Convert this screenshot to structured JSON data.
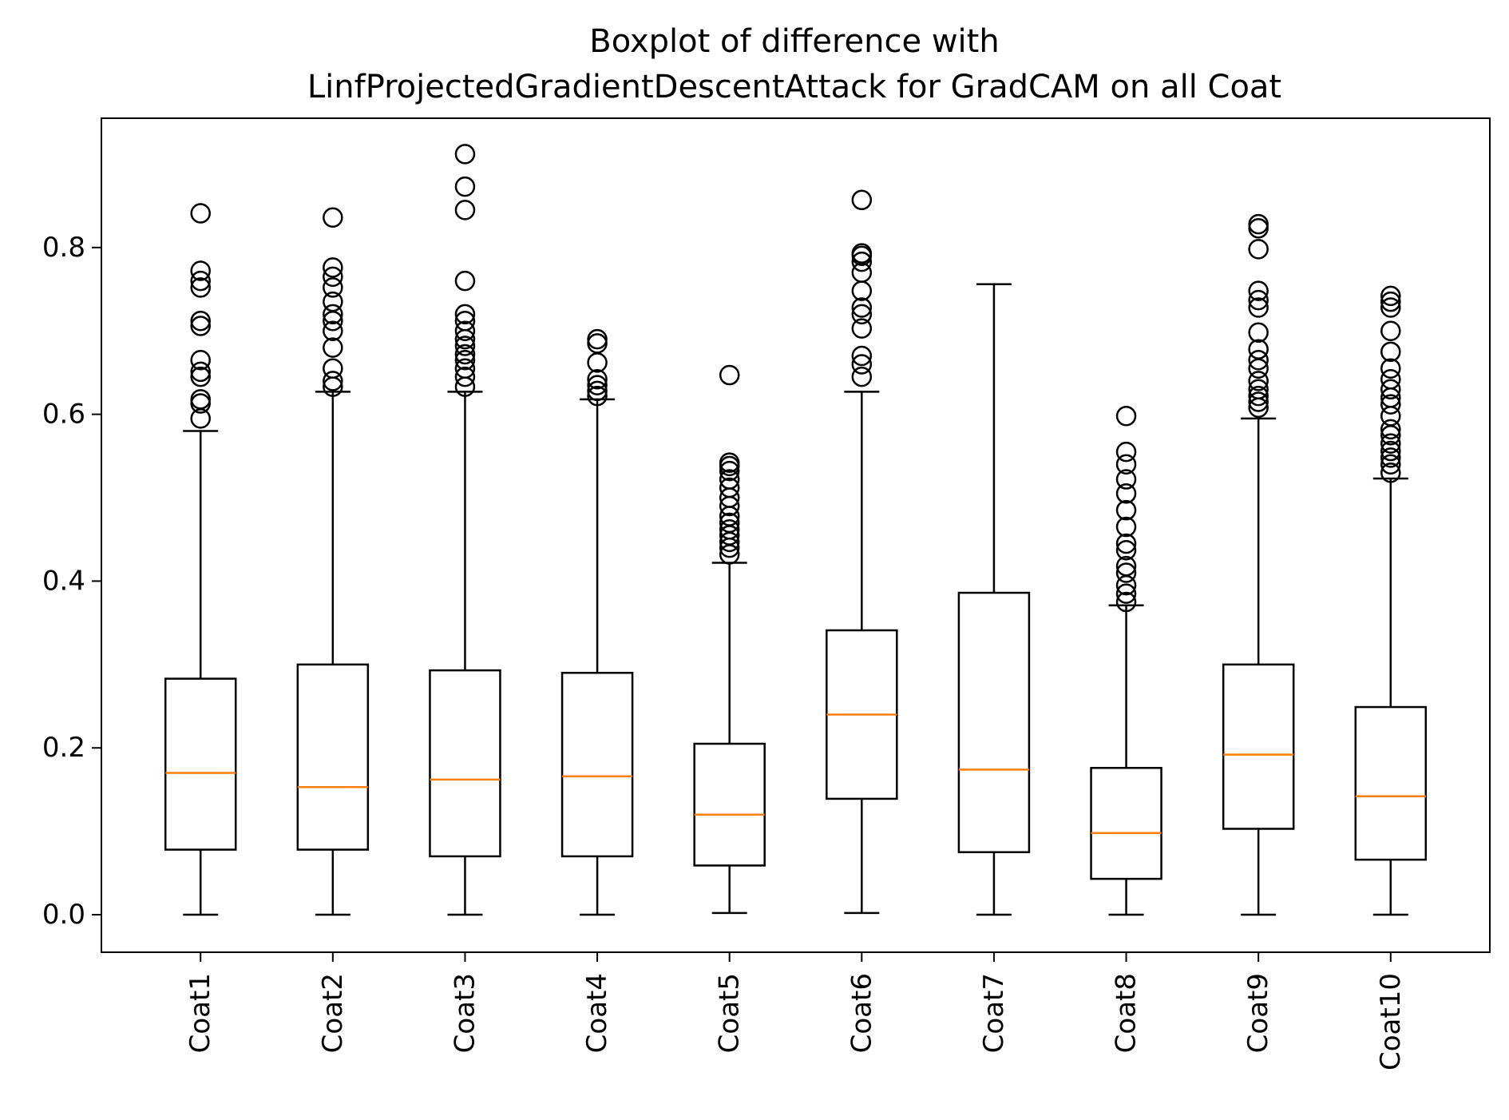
{
  "chart_data": {
    "type": "box",
    "title_line1": "Boxplot of difference with",
    "title_line2": "LinfProjectedGradientDescentAttack for GradCAM on all Coat",
    "xlabel": "",
    "ylabel": "",
    "ylim": [
      -0.045,
      0.955
    ],
    "yticks": [
      0.0,
      0.2,
      0.4,
      0.6,
      0.8
    ],
    "ytick_labels": [
      "0.0",
      "0.2",
      "0.4",
      "0.6",
      "0.8"
    ],
    "grid": false,
    "colors": {
      "box": "#000000",
      "median": "#ff7f0e"
    },
    "boxes": [
      {
        "label": "Coat1",
        "whisker_low": 0.0,
        "q1": 0.078,
        "median": 0.17,
        "q3": 0.283,
        "whisker_high": 0.58,
        "outliers": [
          0.595,
          0.613,
          0.618,
          0.645,
          0.651,
          0.665,
          0.706,
          0.712,
          0.752,
          0.76,
          0.772,
          0.841
        ]
      },
      {
        "label": "Coat2",
        "whisker_low": 0.0,
        "q1": 0.078,
        "median": 0.153,
        "q3": 0.3,
        "whisker_high": 0.627,
        "outliers": [
          0.633,
          0.64,
          0.655,
          0.68,
          0.7,
          0.712,
          0.72,
          0.735,
          0.752,
          0.765,
          0.776,
          0.836
        ]
      },
      {
        "label": "Coat3",
        "whisker_low": 0.0,
        "q1": 0.07,
        "median": 0.162,
        "q3": 0.293,
        "whisker_high": 0.627,
        "outliers": [
          0.633,
          0.645,
          0.655,
          0.665,
          0.672,
          0.682,
          0.69,
          0.7,
          0.712,
          0.72,
          0.76,
          0.845,
          0.873,
          0.912
        ]
      },
      {
        "label": "Coat4",
        "whisker_low": 0.0,
        "q1": 0.07,
        "median": 0.166,
        "q3": 0.29,
        "whisker_high": 0.618,
        "outliers": [
          0.622,
          0.628,
          0.635,
          0.642,
          0.662,
          0.685,
          0.69
        ]
      },
      {
        "label": "Coat5",
        "whisker_low": 0.002,
        "q1": 0.059,
        "median": 0.12,
        "q3": 0.205,
        "whisker_high": 0.422,
        "outliers": [
          0.432,
          0.44,
          0.447,
          0.455,
          0.462,
          0.47,
          0.478,
          0.49,
          0.5,
          0.512,
          0.522,
          0.532,
          0.538,
          0.542,
          0.647
        ]
      },
      {
        "label": "Coat6",
        "whisker_low": 0.002,
        "q1": 0.139,
        "median": 0.24,
        "q3": 0.341,
        "whisker_high": 0.627,
        "outliers": [
          0.645,
          0.66,
          0.67,
          0.703,
          0.72,
          0.728,
          0.748,
          0.77,
          0.783,
          0.79,
          0.793,
          0.857
        ]
      },
      {
        "label": "Coat7",
        "whisker_low": 0.0,
        "q1": 0.075,
        "median": 0.174,
        "q3": 0.386,
        "whisker_high": 0.756,
        "outliers": []
      },
      {
        "label": "Coat8",
        "whisker_low": 0.0,
        "q1": 0.043,
        "median": 0.098,
        "q3": 0.176,
        "whisker_high": 0.371,
        "outliers": [
          0.375,
          0.385,
          0.395,
          0.41,
          0.418,
          0.437,
          0.445,
          0.465,
          0.485,
          0.505,
          0.522,
          0.54,
          0.555,
          0.598
        ]
      },
      {
        "label": "Coat9",
        "whisker_low": 0.0,
        "q1": 0.103,
        "median": 0.192,
        "q3": 0.3,
        "whisker_high": 0.595,
        "outliers": [
          0.608,
          0.615,
          0.622,
          0.63,
          0.64,
          0.655,
          0.665,
          0.678,
          0.698,
          0.728,
          0.737,
          0.748,
          0.798,
          0.823,
          0.828
        ]
      },
      {
        "label": "Coat10",
        "whisker_low": 0.0,
        "q1": 0.066,
        "median": 0.142,
        "q3": 0.249,
        "whisker_high": 0.523,
        "outliers": [
          0.53,
          0.54,
          0.548,
          0.556,
          0.565,
          0.575,
          0.582,
          0.598,
          0.612,
          0.62,
          0.63,
          0.642,
          0.655,
          0.675,
          0.7,
          0.728,
          0.735,
          0.742
        ]
      }
    ]
  }
}
